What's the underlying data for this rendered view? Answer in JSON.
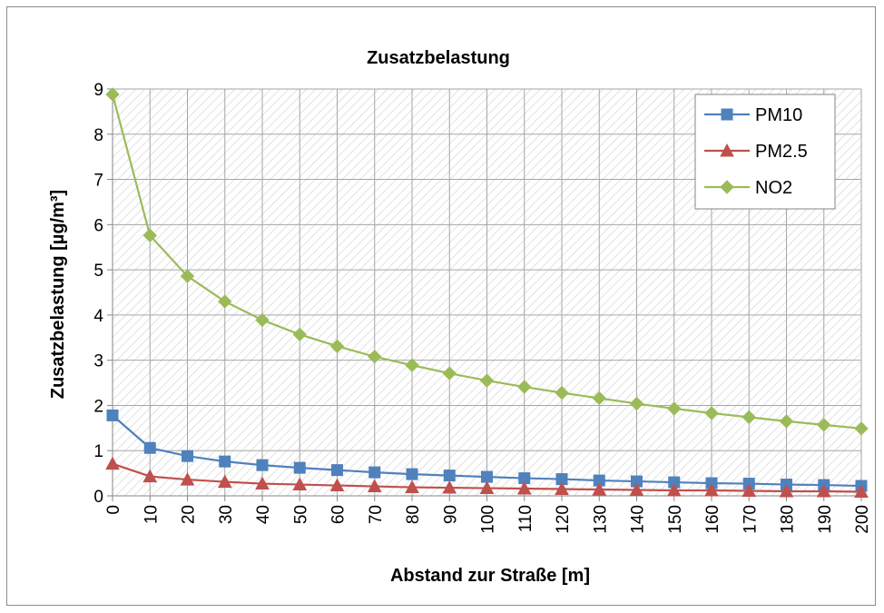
{
  "chart_data": {
    "type": "line",
    "title": "Zusatzbelastung",
    "xlabel": "Abstand zur Straße [m]",
    "ylabel": "Zusatzbelastung [µg/m³]",
    "x": [
      0,
      10,
      20,
      30,
      40,
      50,
      60,
      70,
      80,
      90,
      100,
      110,
      120,
      130,
      140,
      150,
      160,
      170,
      180,
      190,
      200
    ],
    "ylim": [
      0,
      9
    ],
    "yticks": [
      0,
      1,
      2,
      3,
      4,
      5,
      6,
      7,
      8,
      9
    ],
    "grid": true,
    "legend_position": "top-right",
    "series": [
      {
        "name": "PM10",
        "color": "#4f81bd",
        "marker": "square",
        "values": [
          1.78,
          1.06,
          0.88,
          0.76,
          0.68,
          0.62,
          0.57,
          0.52,
          0.48,
          0.45,
          0.42,
          0.39,
          0.37,
          0.34,
          0.32,
          0.3,
          0.28,
          0.27,
          0.25,
          0.24,
          0.22
        ]
      },
      {
        "name": "PM2.5",
        "color": "#c0504d",
        "marker": "triangle",
        "values": [
          0.71,
          0.43,
          0.36,
          0.31,
          0.27,
          0.25,
          0.23,
          0.21,
          0.19,
          0.18,
          0.17,
          0.16,
          0.15,
          0.14,
          0.13,
          0.12,
          0.12,
          0.11,
          0.1,
          0.1,
          0.09
        ]
      },
      {
        "name": "NO2",
        "color": "#9bbb59",
        "marker": "diamond",
        "values": [
          8.88,
          5.76,
          4.86,
          4.3,
          3.89,
          3.57,
          3.31,
          3.08,
          2.89,
          2.71,
          2.55,
          2.41,
          2.28,
          2.16,
          2.04,
          1.93,
          1.83,
          1.74,
          1.65,
          1.57,
          1.49
        ]
      }
    ]
  }
}
